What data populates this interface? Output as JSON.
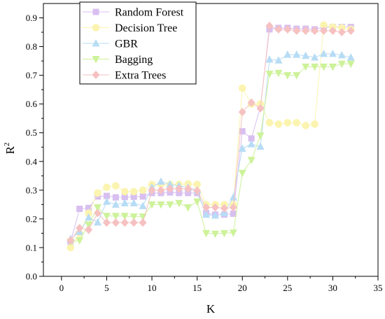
{
  "chart_data": {
    "type": "line",
    "xlabel": "K",
    "ylabel": "R",
    "ylabel_superscript": "2",
    "xlim": [
      -2,
      35
    ],
    "ylim": [
      0,
      0.95
    ],
    "xticks": [
      0,
      5,
      10,
      15,
      20,
      25,
      30,
      35
    ],
    "yticks": [
      0.0,
      0.1,
      0.2,
      0.3,
      0.4,
      0.5,
      0.6,
      0.7,
      0.8,
      0.9
    ],
    "ytick_labels": [
      "0.0",
      "0.1",
      "0.2",
      "0.3",
      "0.4",
      "0.5",
      "0.6",
      "0.7",
      "0.8",
      "0.9"
    ],
    "legend_position": "top-left",
    "x": [
      1,
      2,
      3,
      4,
      5,
      6,
      7,
      8,
      9,
      10,
      11,
      12,
      13,
      14,
      15,
      16,
      17,
      18,
      19,
      20,
      21,
      22,
      23,
      24,
      25,
      26,
      27,
      28,
      29,
      30,
      31,
      32
    ],
    "series": [
      {
        "name": "Random Forest",
        "marker": "square",
        "color": "#d8bff0",
        "values": [
          0.12,
          0.235,
          0.238,
          0.278,
          0.28,
          0.275,
          0.276,
          0.277,
          0.278,
          0.29,
          0.29,
          0.292,
          0.29,
          0.29,
          0.29,
          0.22,
          0.215,
          0.215,
          0.218,
          0.505,
          0.48,
          0.59,
          0.86,
          0.865,
          0.865,
          0.862,
          0.862,
          0.86,
          0.868,
          0.868,
          0.868,
          0.868
        ]
      },
      {
        "name": "Decision Tree",
        "marker": "circle",
        "color": "#fbf4b0",
        "values": [
          0.1,
          0.15,
          0.22,
          0.29,
          0.31,
          0.315,
          0.295,
          0.295,
          0.3,
          0.32,
          0.32,
          0.32,
          0.32,
          0.322,
          0.32,
          0.25,
          0.25,
          0.25,
          0.25,
          0.655,
          0.6,
          0.6,
          0.535,
          0.53,
          0.535,
          0.535,
          0.525,
          0.53,
          0.875,
          0.868,
          0.865,
          0.86
        ]
      },
      {
        "name": "GBR",
        "marker": "triangle-up",
        "color": "#b7dcf5",
        "values": [
          0.13,
          0.155,
          0.205,
          0.188,
          0.26,
          0.25,
          0.255,
          0.255,
          0.245,
          0.31,
          0.33,
          0.32,
          0.315,
          0.31,
          0.3,
          0.215,
          0.212,
          0.22,
          0.275,
          0.445,
          0.46,
          0.452,
          0.755,
          0.752,
          0.772,
          0.772,
          0.768,
          0.762,
          0.775,
          0.775,
          0.77,
          0.762
        ]
      },
      {
        "name": "Bagging",
        "marker": "triangle-down",
        "color": "#cdf29a",
        "values": [
          0.12,
          0.125,
          0.18,
          0.24,
          0.21,
          0.21,
          0.21,
          0.208,
          0.208,
          0.25,
          0.25,
          0.25,
          0.255,
          0.24,
          0.26,
          0.15,
          0.148,
          0.15,
          0.152,
          0.36,
          0.405,
          0.49,
          0.705,
          0.708,
          0.7,
          0.7,
          0.73,
          0.73,
          0.73,
          0.73,
          0.74,
          0.74
        ]
      },
      {
        "name": "Extra Trees",
        "marker": "diamond",
        "color": "#f6c1c1",
        "values": [
          0.125,
          0.168,
          0.162,
          0.22,
          0.187,
          0.187,
          0.187,
          0.187,
          0.187,
          0.3,
          0.3,
          0.305,
          0.305,
          0.305,
          0.298,
          0.24,
          0.24,
          0.237,
          0.24,
          0.572,
          0.605,
          0.585,
          0.872,
          0.86,
          0.86,
          0.855,
          0.855,
          0.855,
          0.855,
          0.855,
          0.85,
          0.855
        ]
      }
    ]
  }
}
